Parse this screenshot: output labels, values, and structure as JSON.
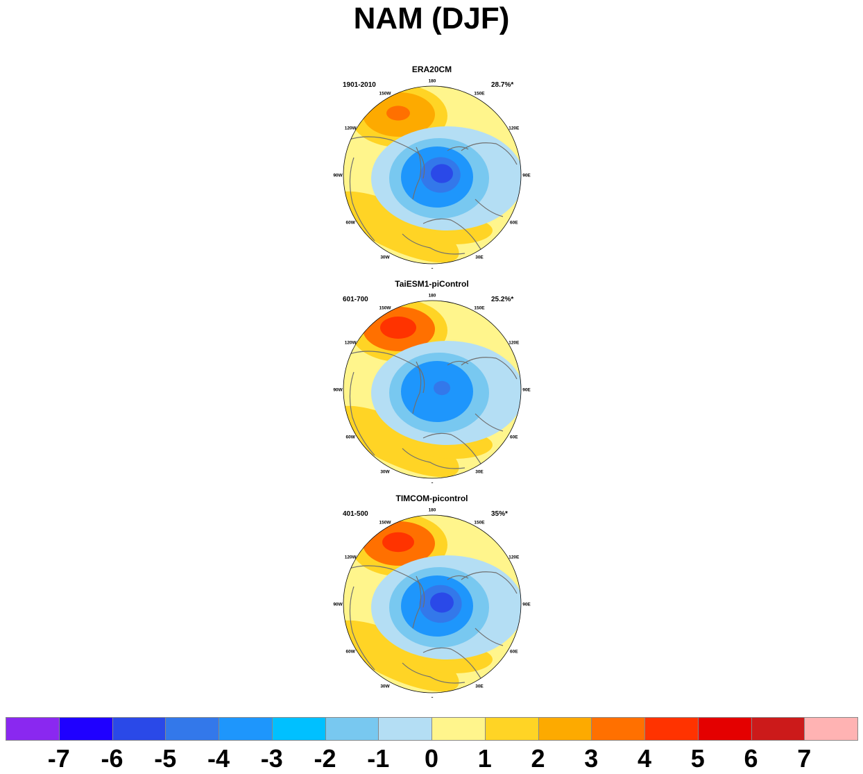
{
  "title": "NAM (DJF)",
  "panels": [
    {
      "title": "ERA20CM",
      "period": "1901-2010",
      "variance": "28.7%*",
      "high": {
        "color": "#fdaa00",
        "core": "#ff7000",
        "strength": 0.55
      },
      "low": {
        "color": "#3378ea",
        "core": "#2a49e8",
        "strength": 0.8
      }
    },
    {
      "title": "TaiESM1-piControl",
      "period": "601-700",
      "variance": "25.2%*",
      "high": {
        "color": "#ff7000",
        "core": "#ff3300",
        "strength": 1.0
      },
      "low": {
        "color": "#1e96fc",
        "core": "#3378ea",
        "strength": 0.6
      }
    },
    {
      "title": "TIMCOM-picontrol",
      "period": "401-500",
      "variance": "35%*",
      "high": {
        "color": "#ff7000",
        "core": "#ff3300",
        "strength": 0.85
      },
      "low": {
        "color": "#3378ea",
        "core": "#2a49e8",
        "strength": 0.85
      }
    }
  ],
  "longitude_labels": [
    "180",
    "150E",
    "120E",
    "90E",
    "60E",
    "30E",
    "0",
    "30W",
    "60W",
    "90W",
    "120W",
    "150W"
  ],
  "colorbar": {
    "colors": [
      "#8a28f0",
      "#1f00ff",
      "#2a49e8",
      "#3378ea",
      "#1e96fc",
      "#00c0ff",
      "#78c8f0",
      "#b4def4",
      "#fff58c",
      "#ffd425",
      "#fdaa00",
      "#ff7000",
      "#ff3300",
      "#e40000",
      "#cc1a1a",
      "#ffb3b3"
    ],
    "labels": [
      "-7",
      "-6",
      "-5",
      "-4",
      "-3",
      "-2",
      "-1",
      "0",
      "1",
      "2",
      "3",
      "4",
      "5",
      "6",
      "7"
    ]
  }
}
